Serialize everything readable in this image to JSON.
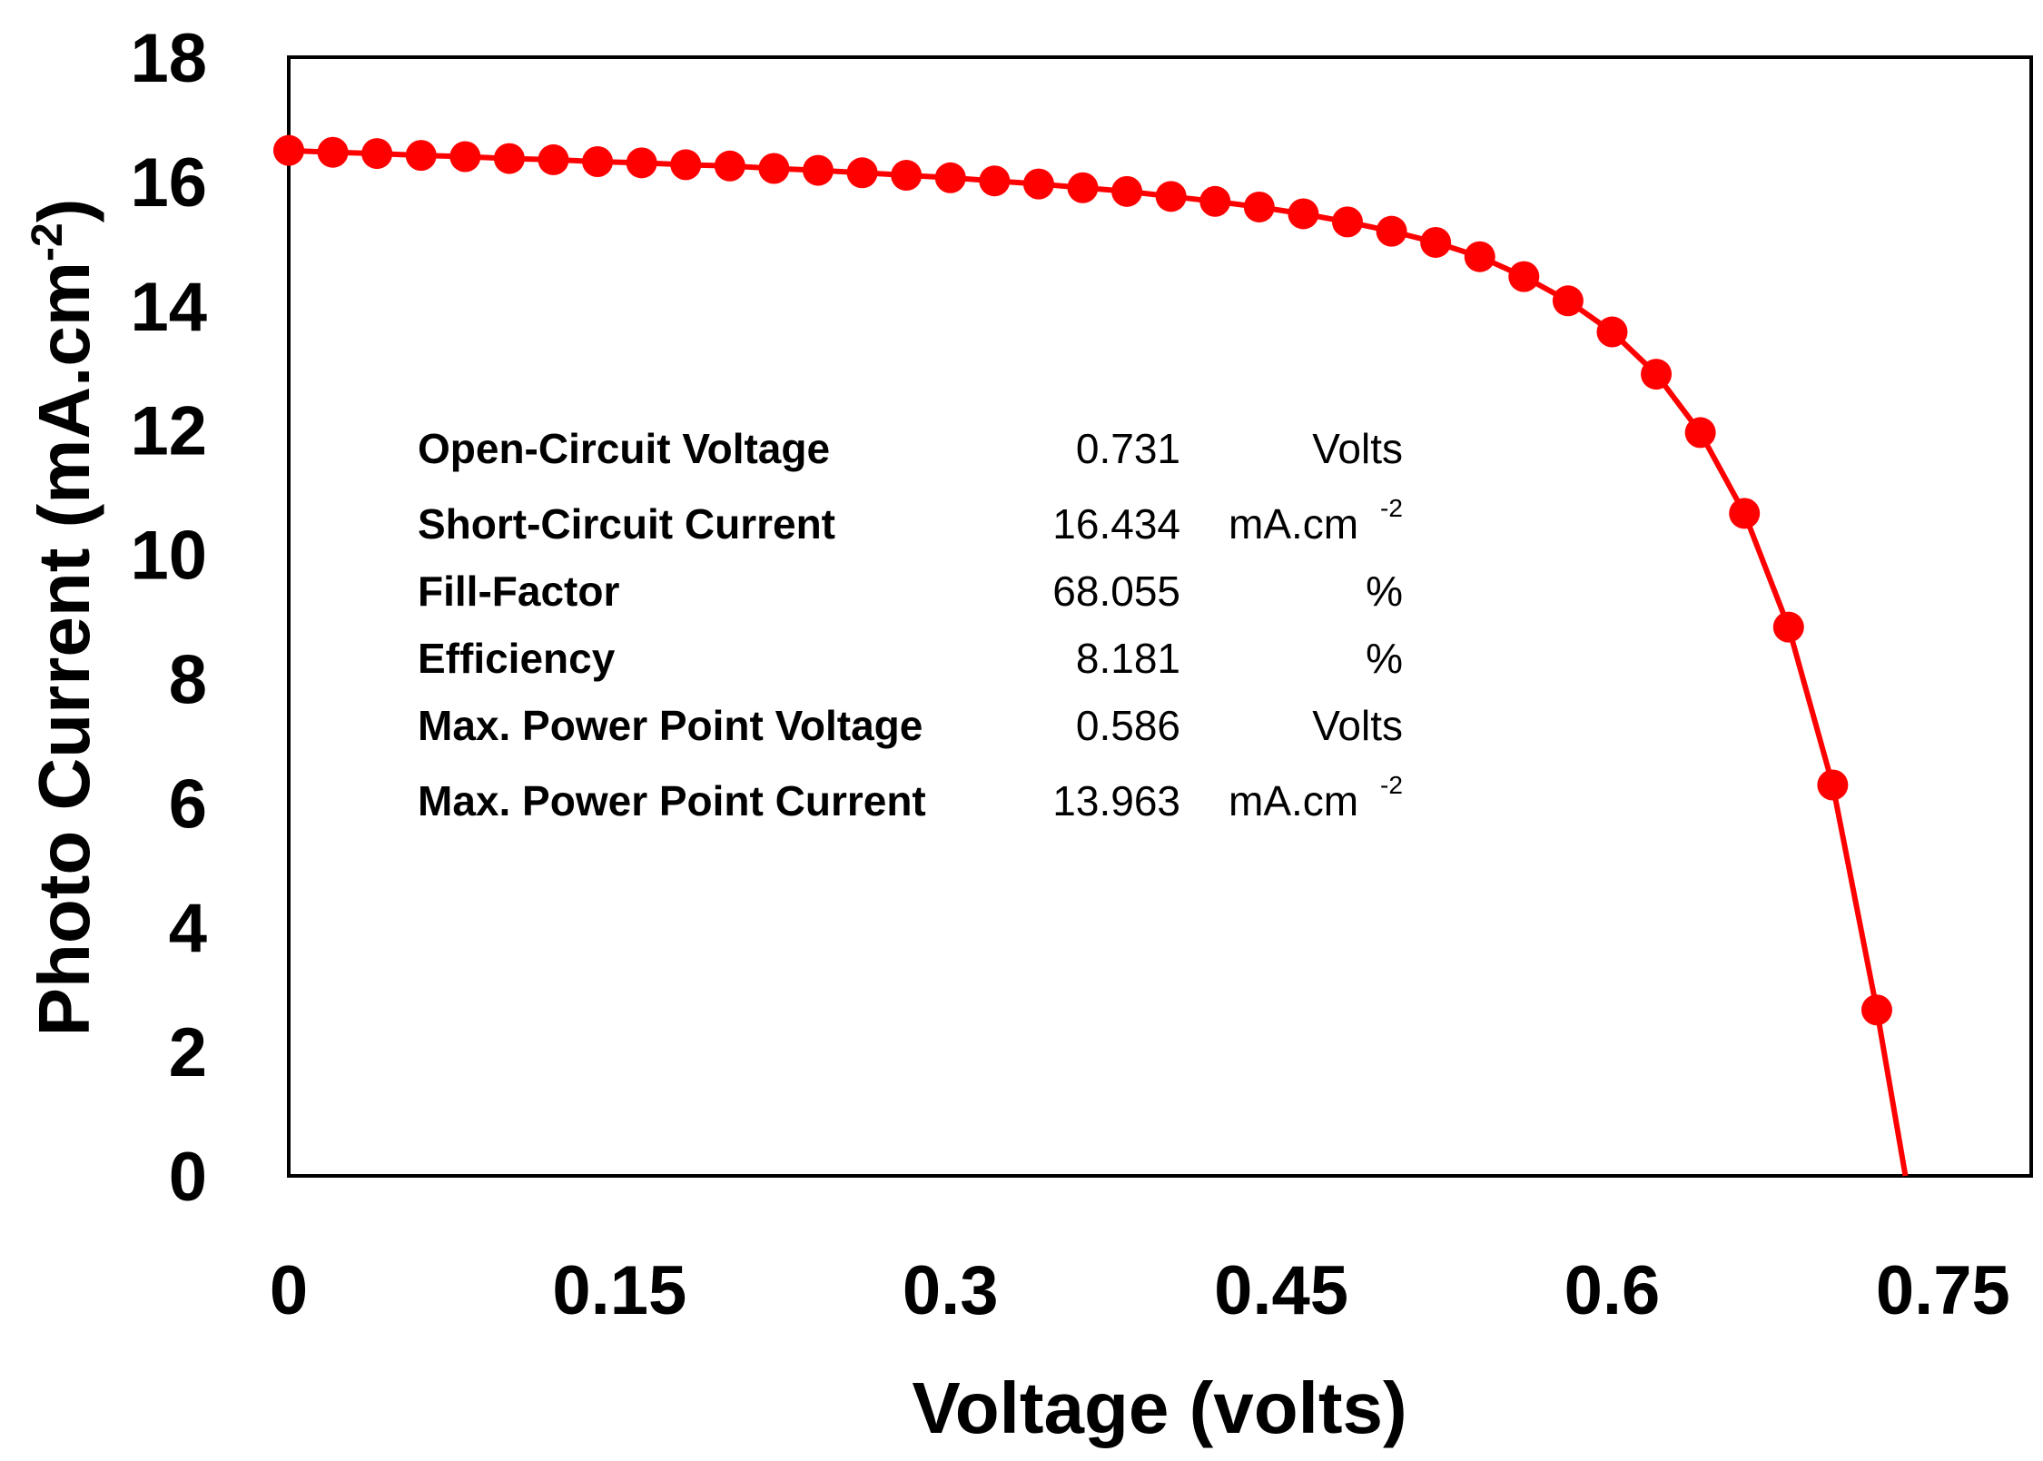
{
  "chart_data": {
    "type": "line",
    "title": "",
    "xlabel": "Voltage (volts)",
    "ylabel_main": "Photo Current (mA.cm",
    "ylabel_sup": "-2",
    "ylabel_close": ")",
    "xlim": [
      0,
      0.79
    ],
    "ylim": [
      0,
      18
    ],
    "xticks": [
      "0",
      "0.15",
      "0.3",
      "0.45",
      "0.6",
      "0.75"
    ],
    "xtick_values": [
      0,
      0.15,
      0.3,
      0.45,
      0.6,
      0.75
    ],
    "yticks": [
      "0",
      "2",
      "4",
      "6",
      "8",
      "10",
      "12",
      "14",
      "16",
      "18"
    ],
    "ytick_values": [
      0,
      2,
      4,
      6,
      8,
      10,
      12,
      14,
      16,
      18
    ],
    "grid": false,
    "legend": "none",
    "series_color": "#ff0000",
    "series": [
      {
        "name": "J-V curve",
        "x": [
          0,
          0.02,
          0.04,
          0.06,
          0.08,
          0.1,
          0.12,
          0.14,
          0.16,
          0.18,
          0.2,
          0.22,
          0.24,
          0.26,
          0.28,
          0.3,
          0.32,
          0.34,
          0.36,
          0.38,
          0.4,
          0.42,
          0.44,
          0.46,
          0.48,
          0.5,
          0.52,
          0.54,
          0.56,
          0.58,
          0.6,
          0.62,
          0.64,
          0.66,
          0.68,
          0.7,
          0.72
        ],
        "y": [
          16.5,
          16.47,
          16.45,
          16.42,
          16.4,
          16.37,
          16.35,
          16.32,
          16.3,
          16.27,
          16.25,
          16.21,
          16.18,
          16.14,
          16.1,
          16.06,
          16.01,
          15.96,
          15.9,
          15.84,
          15.76,
          15.68,
          15.59,
          15.48,
          15.35,
          15.2,
          15.02,
          14.79,
          14.47,
          14.08,
          13.58,
          12.9,
          11.96,
          10.66,
          8.83,
          6.29,
          2.67
        ],
        "markers": true,
        "line_end": {
          "x": 0.733,
          "y": 0
        }
      }
    ],
    "annotation": {
      "rows": [
        {
          "label": "Open-Circuit Voltage",
          "value": "0.731",
          "unit": "Volts",
          "unit_sup": ""
        },
        {
          "label": "Short-Circuit Current",
          "value": "16.434",
          "unit": "mA.cm",
          "unit_sup": "-2"
        },
        {
          "label": "Fill-Factor",
          "value": "68.055",
          "unit": "%",
          "unit_sup": ""
        },
        {
          "label": "Efficiency",
          "value": "8.181",
          "unit": "%",
          "unit_sup": ""
        },
        {
          "label": "Max. Power Point Voltage",
          "value": "0.586",
          "unit": "Volts",
          "unit_sup": ""
        },
        {
          "label": "Max. Power Point Current",
          "value": "13.963",
          "unit": "mA.cm",
          "unit_sup": "-2"
        }
      ]
    }
  }
}
